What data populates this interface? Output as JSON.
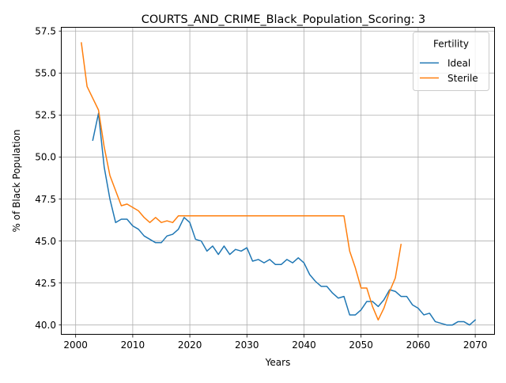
{
  "chart_data": {
    "type": "line",
    "title": "COURTS_AND_CRIME_Black_Population_Scoring: 3",
    "xlabel": "Years",
    "ylabel": "% of Black Population",
    "xlim": [
      1997.55,
      2073.45
    ],
    "ylim": [
      39.42,
      57.7
    ],
    "xticks": [
      2000,
      2010,
      2020,
      2030,
      2040,
      2050,
      2060,
      2070
    ],
    "xtick_labels": [
      "2000",
      "2010",
      "2020",
      "2030",
      "2040",
      "2050",
      "2060",
      "2070"
    ],
    "yticks": [
      40.0,
      42.5,
      45.0,
      47.5,
      50.0,
      52.5,
      55.0,
      57.5
    ],
    "ytick_labels": [
      "40.0",
      "42.5",
      "45.0",
      "47.5",
      "50.0",
      "52.5",
      "55.0",
      "57.5"
    ],
    "grid": true,
    "legend": {
      "title": "Fertility",
      "placement": "top-right"
    },
    "series": [
      {
        "name": "Ideal",
        "color": "#1f77b4",
        "x": [
          2003,
          2004,
          2005,
          2006,
          2007,
          2008,
          2009,
          2010,
          2011,
          2012,
          2013,
          2014,
          2015,
          2016,
          2017,
          2018,
          2019,
          2020,
          2021,
          2022,
          2023,
          2024,
          2025,
          2026,
          2027,
          2028,
          2029,
          2030,
          2031,
          2032,
          2033,
          2034,
          2035,
          2036,
          2037,
          2038,
          2039,
          2040,
          2041,
          2042,
          2043,
          2044,
          2045,
          2046,
          2047,
          2048,
          2049,
          2050,
          2051,
          2052,
          2053,
          2054,
          2055,
          2056,
          2057,
          2058,
          2059,
          2060,
          2061,
          2062,
          2063,
          2064,
          2065,
          2066,
          2067,
          2068,
          2069,
          2070
        ],
        "y": [
          51.0,
          52.6,
          49.4,
          47.5,
          46.1,
          46.3,
          46.3,
          45.9,
          45.7,
          45.3,
          45.1,
          44.9,
          44.9,
          45.3,
          45.4,
          45.7,
          46.4,
          46.1,
          45.1,
          45.0,
          44.4,
          44.7,
          44.2,
          44.7,
          44.2,
          44.5,
          44.4,
          44.6,
          43.8,
          43.9,
          43.7,
          43.9,
          43.6,
          43.6,
          43.9,
          43.7,
          44.0,
          43.7,
          43.0,
          42.6,
          42.3,
          42.3,
          41.9,
          41.6,
          41.7,
          40.6,
          40.6,
          40.9,
          41.4,
          41.4,
          41.1,
          41.5,
          42.1,
          42.0,
          41.7,
          41.7,
          41.2,
          41.0,
          40.6,
          40.7,
          40.2,
          40.1,
          40.0,
          40.0,
          40.2,
          40.2,
          40.0,
          40.3
        ]
      },
      {
        "name": "Sterile",
        "color": "#ff7f0e",
        "x": [
          2001,
          2002,
          2003,
          2004,
          2005,
          2006,
          2007,
          2008,
          2009,
          2010,
          2011,
          2012,
          2013,
          2014,
          2015,
          2016,
          2017,
          2018,
          2019,
          2020,
          2021,
          2022,
          2023,
          2024,
          2025,
          2026,
          2027,
          2028,
          2029,
          2030,
          2031,
          2032,
          2033,
          2034,
          2035,
          2036,
          2037,
          2038,
          2039,
          2040,
          2041,
          2042,
          2043,
          2044,
          2045,
          2046,
          2047,
          2048,
          2049,
          2050,
          2051,
          2052,
          2053,
          2054,
          2055,
          2056,
          2057
        ],
        "y": [
          56.8,
          54.2,
          53.5,
          52.8,
          50.6,
          48.9,
          48.0,
          47.1,
          47.2,
          47.0,
          46.8,
          46.4,
          46.1,
          46.4,
          46.1,
          46.2,
          46.1,
          46.5,
          46.5,
          46.5,
          46.5,
          46.5,
          46.5,
          46.5,
          46.5,
          46.5,
          46.5,
          46.5,
          46.5,
          46.5,
          46.5,
          46.5,
          46.5,
          46.5,
          46.5,
          46.5,
          46.5,
          46.5,
          46.5,
          46.5,
          46.5,
          46.5,
          46.5,
          46.5,
          46.5,
          46.5,
          46.5,
          44.4,
          43.4,
          42.2,
          42.2,
          41.1,
          40.3,
          41.0,
          42.0,
          42.8,
          44.8
        ]
      }
    ]
  }
}
